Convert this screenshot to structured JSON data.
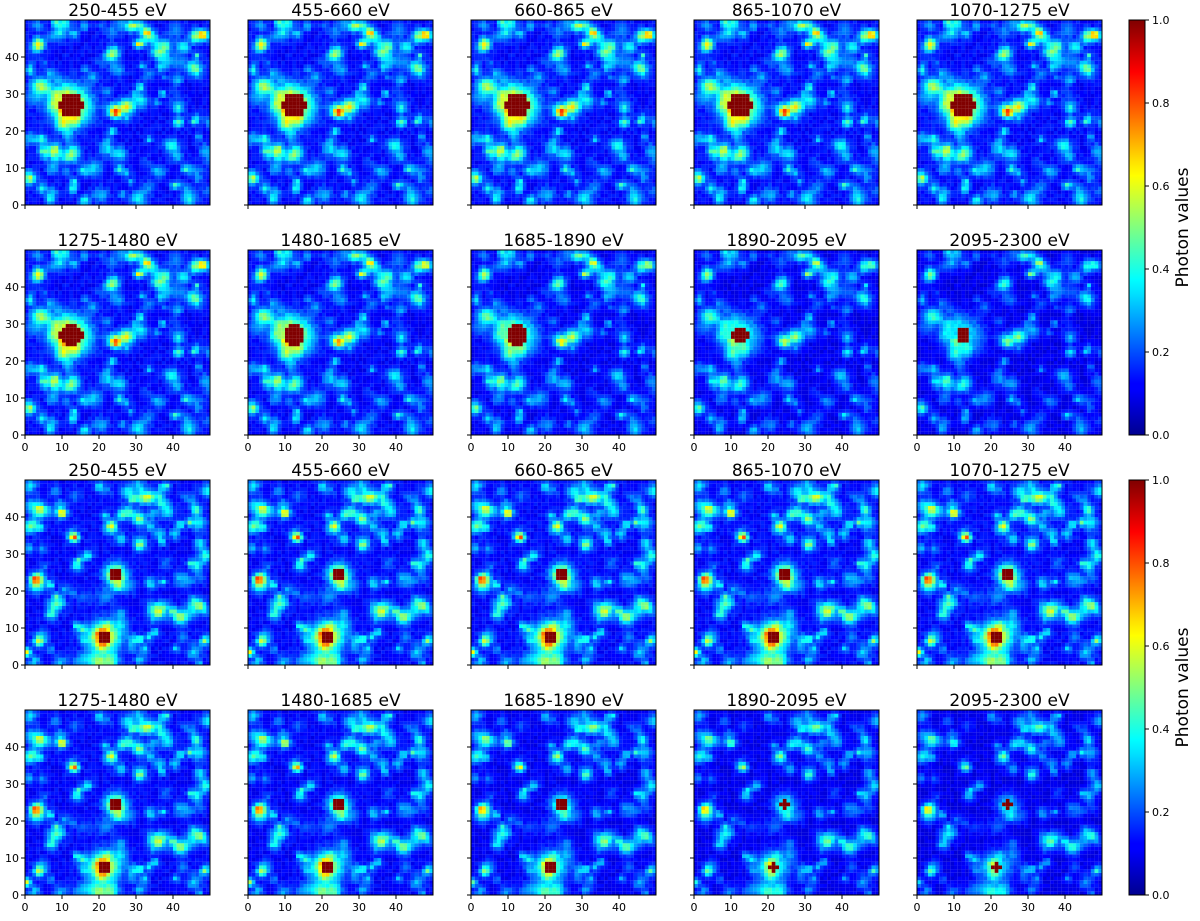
{
  "chart_data": {
    "type": "heatmap",
    "colormap": "jet",
    "grid": false,
    "energy_bands": [
      "250-455 eV",
      "455-660 eV",
      "660-865 eV",
      "865-1070 eV",
      "1070-1275 eV",
      "1275-1480 eV",
      "1480-1685 eV",
      "1685-1890 eV",
      "1890-2095 eV",
      "2095-2300 eV"
    ],
    "x_ticks": [
      0,
      10,
      20,
      30,
      40
    ],
    "y_ticks": [
      0,
      10,
      20,
      30,
      40
    ],
    "xlim": [
      0,
      50
    ],
    "ylim": [
      0,
      50
    ],
    "x_tick_labels_shown_on_row": "bottom",
    "colorbar": {
      "label": "Photon values",
      "ticks": [
        0.0,
        0.2,
        0.4,
        0.6,
        0.8,
        1.0
      ],
      "tick_labels": [
        "0.0",
        "0.2",
        "0.4",
        "0.6",
        "0.8",
        "1.0"
      ],
      "range": [
        0.0,
        1.0
      ]
    },
    "groups": [
      {
        "sources": [
          {
            "x": 12.5,
            "y": 27,
            "peak": 1.0,
            "sigma": 2.0,
            "type": "bright"
          },
          {
            "x": 24.5,
            "y": 25,
            "peak": 0.55,
            "sigma": 1.0,
            "type": "secondary"
          },
          {
            "x": 48,
            "y": 46,
            "peak": 0.6,
            "sigma": 0.9,
            "type": "secondary"
          }
        ],
        "band_brightness": [
          1.0,
          1.0,
          1.0,
          1.0,
          1.0,
          0.95,
          0.85,
          0.7,
          0.58,
          0.48
        ],
        "band_source_radius": [
          3.3,
          3.3,
          3.3,
          3.3,
          3.3,
          3.2,
          3.0,
          2.7,
          2.3,
          2.0
        ]
      },
      {
        "sources": [
          {
            "x": 21.5,
            "y": 7.5,
            "peak": 1.0,
            "sigma": 1.6,
            "type": "bright"
          },
          {
            "x": 24.5,
            "y": 24.5,
            "peak": 1.0,
            "sigma": 1.1,
            "type": "bright"
          },
          {
            "x": 13.5,
            "y": 34.5,
            "peak": 0.5,
            "sigma": 0.8,
            "type": "secondary"
          },
          {
            "x": 10,
            "y": 41,
            "peak": 0.45,
            "sigma": 0.8,
            "type": "secondary"
          },
          {
            "x": 0.5,
            "y": 3.5,
            "peak": 0.5,
            "sigma": 0.8,
            "type": "secondary"
          }
        ],
        "band_brightness": [
          1.0,
          1.0,
          1.0,
          1.0,
          1.0,
          0.95,
          0.85,
          0.7,
          0.58,
          0.48
        ],
        "band_source_radius": [
          1.8,
          1.8,
          1.8,
          1.8,
          1.8,
          1.8,
          1.7,
          1.6,
          1.4,
          1.3
        ]
      }
    ]
  }
}
